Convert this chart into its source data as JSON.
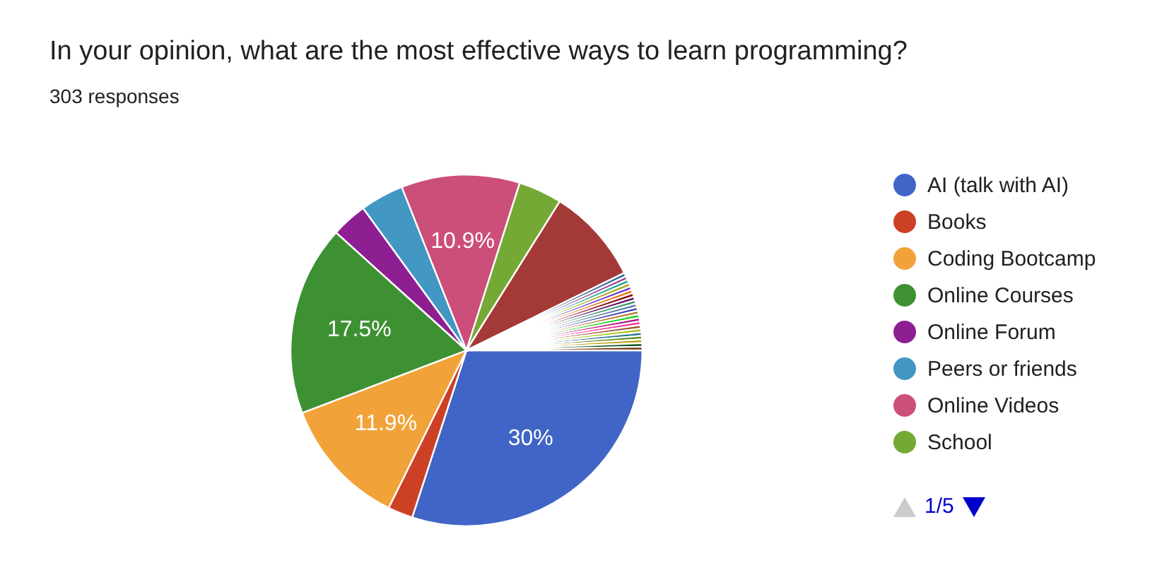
{
  "chart_data": {
    "type": "pie",
    "title": "In your opinion, what are the most effective ways to learn programming?",
    "subtitle": "303 responses",
    "categories": [
      "AI (talk with AI)",
      "Books",
      "Coding Bootcamp",
      "Online Courses",
      "Online Forum",
      "Peers or friends",
      "Online Videos",
      "School",
      null,
      null,
      null,
      null,
      null,
      null,
      null,
      null,
      null,
      null,
      null,
      null,
      null,
      null,
      null,
      null,
      null,
      null,
      null,
      null,
      null,
      null,
      null
    ],
    "values": [
      30,
      2.3,
      11.9,
      17.5,
      3.3,
      4,
      10.9,
      4,
      8.84,
      0.33,
      0.33,
      0.33,
      0.33,
      0.33,
      0.33,
      0.33,
      0.33,
      0.33,
      0.33,
      0.33,
      0.33,
      0.33,
      0.33,
      0.33,
      0.33,
      0.33,
      0.33,
      0.33,
      0.33,
      0.33,
      0.33
    ],
    "colors": [
      "#4065c6",
      "#cc4125",
      "#f1a33a",
      "#3e9133",
      "#8e1f93",
      "#4297c3",
      "#cc4e7a",
      "#75a935",
      "#a43a37",
      "#316395",
      "#994499",
      "#22aa99",
      "#aaaa11",
      "#6633cc",
      "#e67300",
      "#8b0707",
      "#651067",
      "#329262",
      "#5574a6",
      "#3b3eac",
      "#b77322",
      "#16d620",
      "#b91383",
      "#f4359e",
      "#9c5935",
      "#a9c413",
      "#2a778d",
      "#668d1c",
      "#bea413",
      "#0c5922",
      "#743411"
    ],
    "value_labels": [
      "30%",
      null,
      "11.9%",
      "17.5%",
      null,
      null,
      "10.9%",
      null,
      null,
      null,
      null,
      null,
      null,
      null,
      null,
      null,
      null,
      null,
      null,
      null,
      null,
      null,
      null,
      null,
      null,
      null,
      null,
      null,
      null,
      null,
      null
    ],
    "legend": "right",
    "annotations": [
      "1/5"
    ]
  }
}
